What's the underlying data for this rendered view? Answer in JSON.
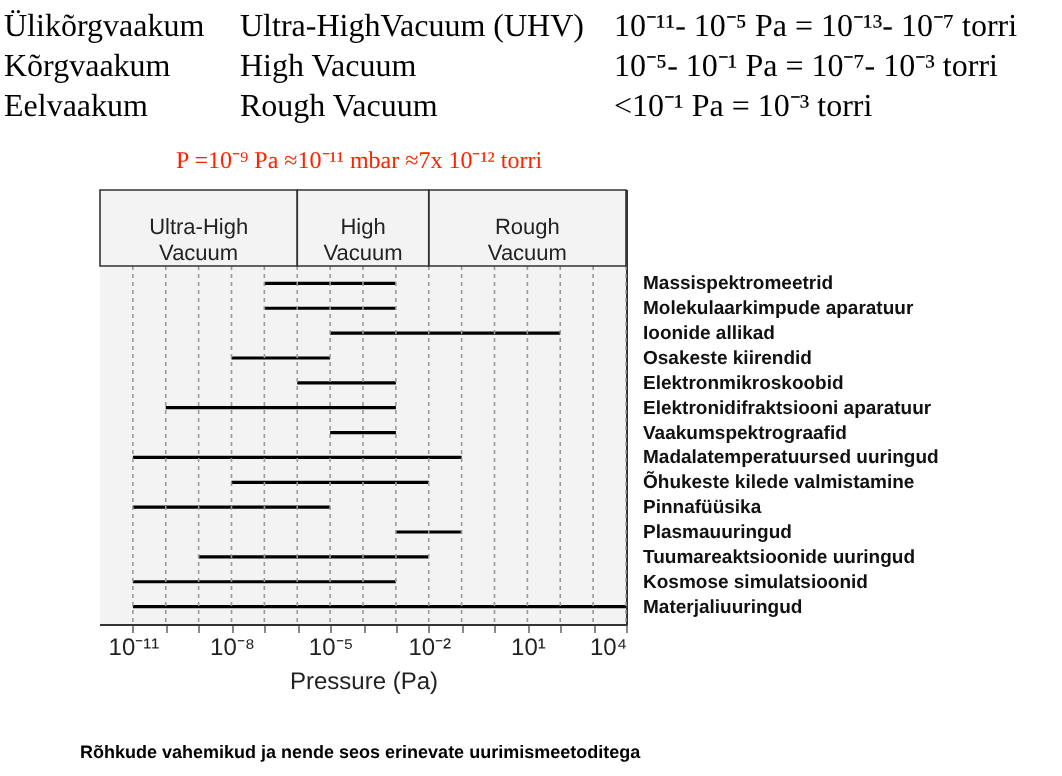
{
  "chart_data": {
    "type": "bar",
    "orientation": "horizontal",
    "log": "x",
    "grid": "x",
    "color": "#000000",
    "xlabel": "Pressure (Pa)",
    "subtitle": "P =10⁻⁹ Pa ≈10⁻¹¹ mbar  ≈7x 10⁻¹² torri",
    "annotations": [
      "Ülikõrgvaakum",
      "Ultra-HighVacuum (UHV)",
      "10⁻¹¹- 10⁻⁵ Pa = 10⁻¹³- 10⁻⁷ torri",
      "Kõrgvaakum",
      "High Vacuum",
      "10⁻⁵- 10⁻¹ Pa = 10⁻⁷- 10⁻³ torri",
      "Eelvaakum",
      "Rough Vacuum",
      "<10⁻¹ Pa = 10⁻³ torri",
      "Rõhkude vahemikud ja nende seos erinevate uurimismeetoditega"
    ],
    "categories": [
      "Massispektromeetrid",
      "Molekulaarkimpude aparatuur",
      "Ioonide allikad",
      "Osakeste kiirendid",
      "Elektronmikroskoobid",
      "Elektronidifraktsiooni aparatuur",
      "Vaakumspektrograafid",
      "Madalatemperatuursed  uuringud",
      "Õhukeste kilede valmistamine",
      "Pinnafüüsika",
      "Plasmauuringud",
      "Tuumareaktsioonide uuringud",
      "Kosmose simulatsioonid",
      "Materjaliuuringud"
    ],
    "base": [
      1e-07,
      1e-07,
      1e-05,
      1e-08,
      1e-06,
      1e-10,
      1e-05,
      1e-11,
      1e-08,
      1e-11,
      0.001,
      1e-09,
      1e-11,
      1e-11
    ],
    "values": [
      0.0009999,
      0.0009999,
      99.99999,
      9.99e-06,
      0.000999,
      0.001,
      0.00099,
      0.1,
      0.01,
      1e-05,
      0.099,
      0.01,
      0.001,
      9999.9999
    ],
    "xlim": [
      1e-12,
      10000
    ],
    "xticks": [
      {
        "value": 1e-11,
        "label": "10⁻¹¹"
      },
      {
        "value": 1e-10,
        "label": null
      },
      {
        "value": 1e-09,
        "label": null
      },
      {
        "value": 1e-08,
        "label": "10⁻⁸"
      },
      {
        "value": 1e-07,
        "label": null
      },
      {
        "value": 1e-06,
        "label": null
      },
      {
        "value": 1e-05,
        "label": "10⁻⁵"
      },
      {
        "value": 0.0001,
        "label": null
      },
      {
        "value": 0.001,
        "label": null
      },
      {
        "value": 0.01,
        "label": "10⁻²"
      },
      {
        "value": 0.1,
        "label": null
      },
      {
        "value": 1,
        "label": null
      },
      {
        "value": 10,
        "label": "10¹"
      },
      {
        "value": 100,
        "label": null
      },
      {
        "value": 1000,
        "label": null
      },
      {
        "value": 10000,
        "label": "10⁴"
      }
    ],
    "bands": [
      {
        "axis": "x",
        "from": 1e-12,
        "to": 1e-06,
        "label": "Ultra-High Vacuum",
        "color": "#f3f3f3"
      },
      {
        "axis": "x",
        "from": 1e-06,
        "to": 0.01,
        "label": "High Vacuum",
        "color": "#f3f3f3"
      },
      {
        "axis": "x",
        "from": 0.01,
        "to": 10000,
        "label": "Rough Vacuum",
        "color": "#f3f3f3"
      }
    ]
  }
}
